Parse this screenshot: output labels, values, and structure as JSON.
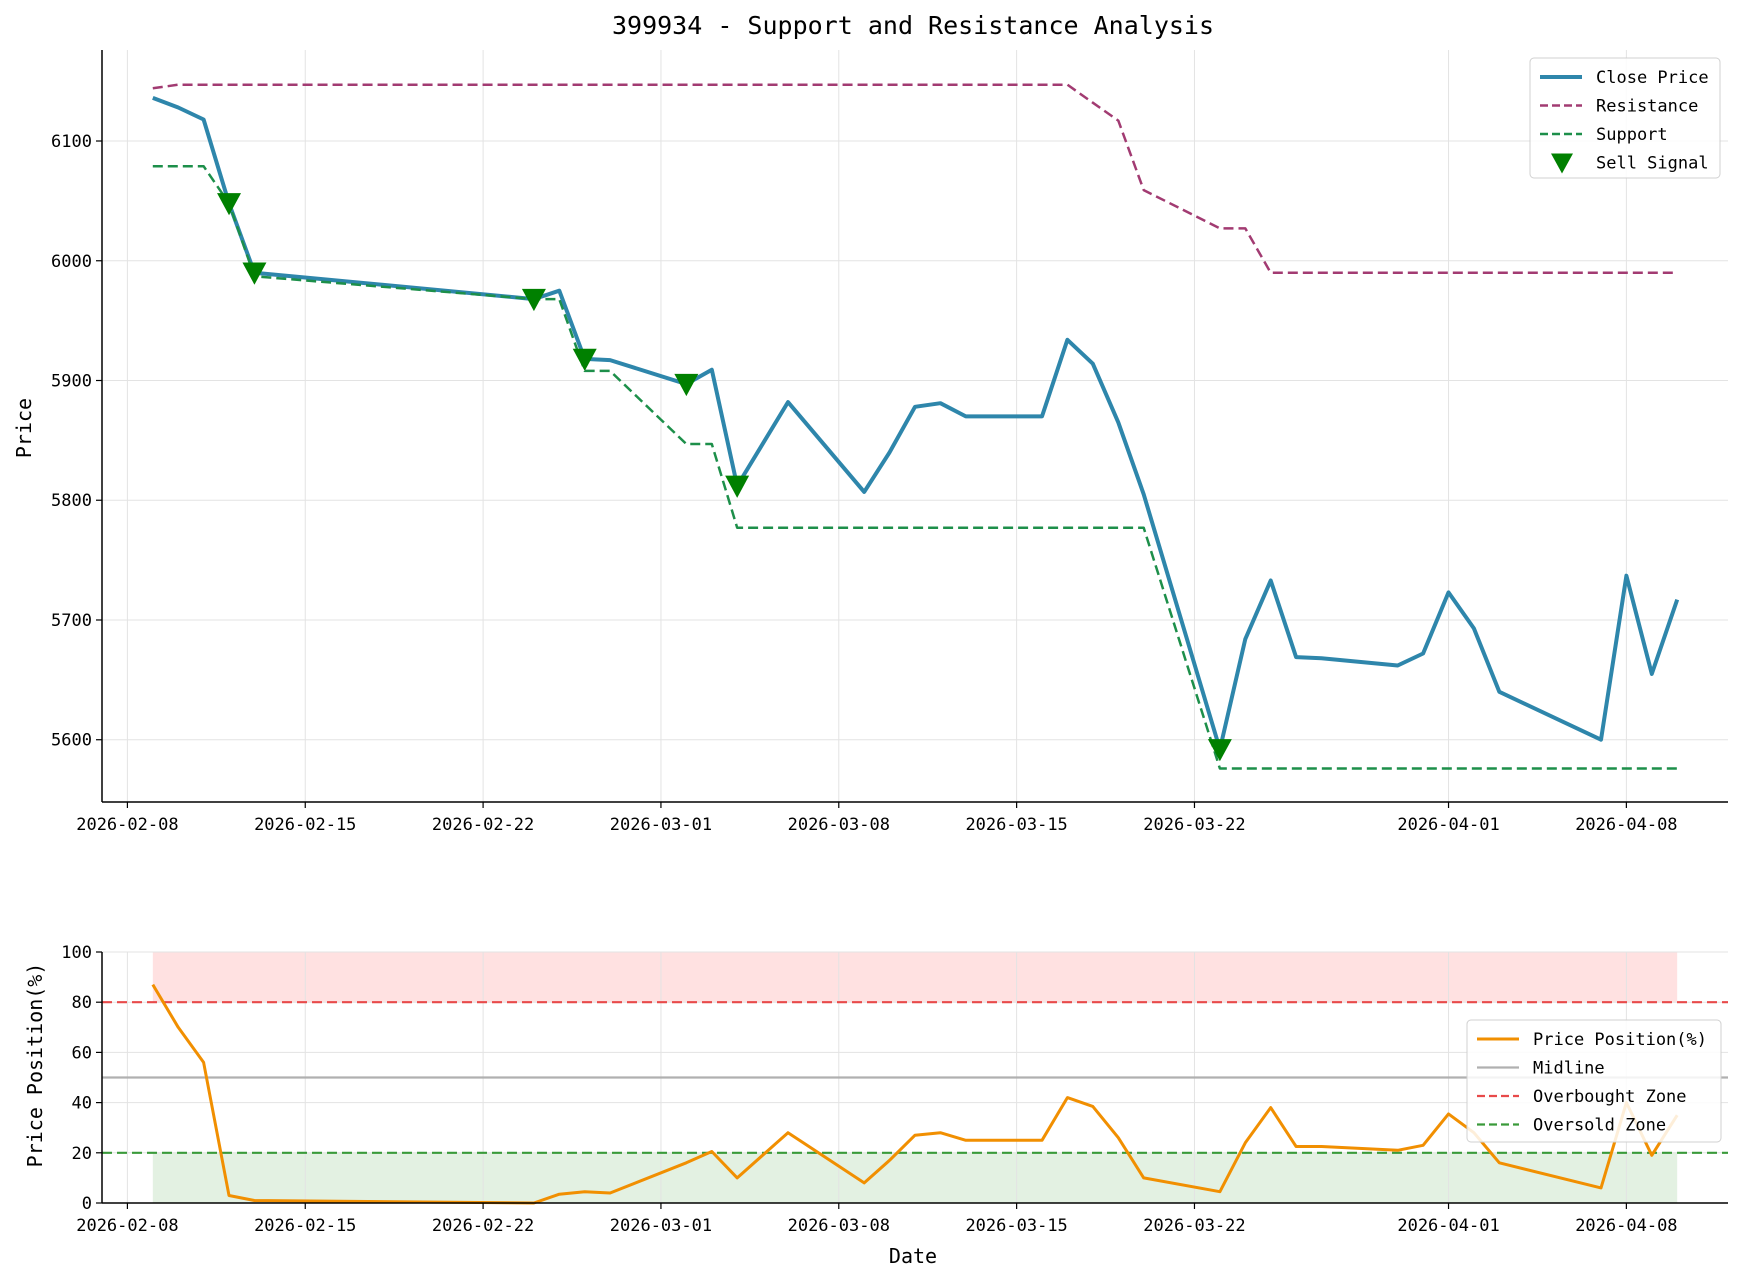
{
  "chart_data": [
    {
      "type": "line",
      "title": "399934 - Support and Resistance Analysis",
      "xlabel": "",
      "ylabel": "Price",
      "xlim": [
        "2026-02-07",
        "2026-04-12"
      ],
      "ylim": [
        5548,
        6176
      ],
      "yticks": [
        5600,
        5700,
        5800,
        5900,
        6000,
        6100
      ],
      "xticks": [
        "2026-02-08",
        "2026-02-15",
        "2026-02-22",
        "2026-03-01",
        "2026-03-08",
        "2026-03-15",
        "2026-03-22",
        "2026-04-01",
        "2026-04-08"
      ],
      "grid": true,
      "legend_position": "top-right",
      "x": [
        "2026-02-09",
        "2026-02-10",
        "2026-02-11",
        "2026-02-12",
        "2026-02-13",
        "2026-02-24",
        "2026-02-25",
        "2026-02-26",
        "2026-02-27",
        "2026-03-02",
        "2026-03-03",
        "2026-03-04",
        "2026-03-06",
        "2026-03-09",
        "2026-03-10",
        "2026-03-11",
        "2026-03-12",
        "2026-03-13",
        "2026-03-16",
        "2026-03-17",
        "2026-03-18",
        "2026-03-19",
        "2026-03-20",
        "2026-03-23",
        "2026-03-24",
        "2026-03-25",
        "2026-03-26",
        "2026-03-27",
        "2026-03-30",
        "2026-03-31",
        "2026-04-01",
        "2026-04-02",
        "2026-04-03",
        "2026-04-07",
        "2026-04-08",
        "2026-04-09",
        "2026-04-10"
      ],
      "series": [
        {
          "name": "Close Price",
          "color": "#2e86ab",
          "style": "solid",
          "values": [
            6136,
            6128,
            6118,
            6048,
            5990,
            5968,
            5975,
            5918,
            5917,
            5897,
            5909,
            5812,
            5882,
            5807,
            5840,
            5878,
            5881,
            5870,
            5870,
            5934,
            5914,
            5865,
            5805,
            5592,
            5684,
            5733,
            5669,
            5668,
            5662,
            5672,
            5723,
            5693,
            5640,
            5600,
            5737,
            5655,
            5717
          ]
        },
        {
          "name": "Resistance",
          "color": "#a23b72",
          "style": "dashed",
          "values": [
            6144,
            6147,
            6147,
            6147,
            6147,
            6147,
            6147,
            6147,
            6147,
            6147,
            6147,
            6147,
            6147,
            6147,
            6147,
            6147,
            6147,
            6147,
            6147,
            6147,
            6132,
            6117,
            6059,
            6027,
            6027,
            5990,
            5990,
            5990,
            5990,
            5990,
            5990,
            5990,
            5990,
            5990,
            5990,
            5990,
            5990
          ]
        },
        {
          "name": "Support",
          "color": "#1d8f4a",
          "style": "dashed",
          "values": [
            6079,
            6079,
            6079,
            6048,
            5987,
            5968,
            5968,
            5908,
            5908,
            5847,
            5847,
            5777,
            5777,
            5777,
            5777,
            5777,
            5777,
            5777,
            5777,
            5777,
            5777,
            5777,
            5777,
            5576,
            5576,
            5576,
            5576,
            5576,
            5576,
            5576,
            5576,
            5576,
            5576,
            5576,
            5576,
            5576,
            5576
          ]
        }
      ],
      "sell_signals": {
        "name": "Sell Signal",
        "color": "#008000",
        "points": [
          {
            "x": "2026-02-12",
            "y": 6048
          },
          {
            "x": "2026-02-13",
            "y": 5990
          },
          {
            "x": "2026-02-24",
            "y": 5968
          },
          {
            "x": "2026-02-26",
            "y": 5918
          },
          {
            "x": "2026-03-02",
            "y": 5897
          },
          {
            "x": "2026-03-04",
            "y": 5812
          },
          {
            "x": "2026-03-23",
            "y": 5592
          }
        ]
      }
    },
    {
      "type": "line",
      "title": "",
      "xlabel": "Date",
      "ylabel": "Price Position(%)",
      "xlim": [
        "2026-02-07",
        "2026-04-12"
      ],
      "ylim": [
        0,
        100
      ],
      "yticks": [
        0,
        20,
        40,
        60,
        80,
        100
      ],
      "xticks": [
        "2026-02-08",
        "2026-02-15",
        "2026-02-22",
        "2026-03-01",
        "2026-03-08",
        "2026-03-15",
        "2026-03-22",
        "2026-04-01",
        "2026-04-08"
      ],
      "grid": true,
      "legend_position": "center-right",
      "x": [
        "2026-02-09",
        "2026-02-10",
        "2026-02-11",
        "2026-02-12",
        "2026-02-13",
        "2026-02-24",
        "2026-02-25",
        "2026-02-26",
        "2026-02-27",
        "2026-03-02",
        "2026-03-03",
        "2026-03-04",
        "2026-03-06",
        "2026-03-09",
        "2026-03-10",
        "2026-03-11",
        "2026-03-12",
        "2026-03-13",
        "2026-03-16",
        "2026-03-17",
        "2026-03-18",
        "2026-03-19",
        "2026-03-20",
        "2026-03-23",
        "2026-03-24",
        "2026-03-25",
        "2026-03-26",
        "2026-03-27",
        "2026-03-30",
        "2026-03-31",
        "2026-04-01",
        "2026-04-02",
        "2026-04-03",
        "2026-04-07",
        "2026-04-08",
        "2026-04-09",
        "2026-04-10"
      ],
      "series": [
        {
          "name": "Price Position(%)",
          "color": "#f18f01",
          "style": "solid",
          "values": [
            87,
            70,
            56,
            3,
            1,
            0,
            3.5,
            4.5,
            4,
            16,
            20.5,
            10,
            28,
            8,
            17,
            27,
            28,
            25,
            25,
            42,
            38.5,
            26,
            10,
            4.5,
            24,
            38,
            22.5,
            22.5,
            21,
            23,
            35.5,
            28,
            16,
            6,
            40,
            19,
            35
          ]
        }
      ],
      "reference_lines": [
        {
          "name": "Midline",
          "y": 50,
          "color": "#b0b0b0",
          "style": "solid"
        },
        {
          "name": "Overbought Zone",
          "y": 80,
          "color": "#e84a4a",
          "style": "dashed"
        },
        {
          "name": "Oversold Zone",
          "y": 20,
          "color": "#3a9a3a",
          "style": "dashed"
        }
      ],
      "shaded_bands": [
        {
          "from": 80,
          "to": 100,
          "color": "#ffe1e1"
        },
        {
          "from": 0,
          "to": 20,
          "color": "#e3f1e2"
        }
      ]
    }
  ]
}
